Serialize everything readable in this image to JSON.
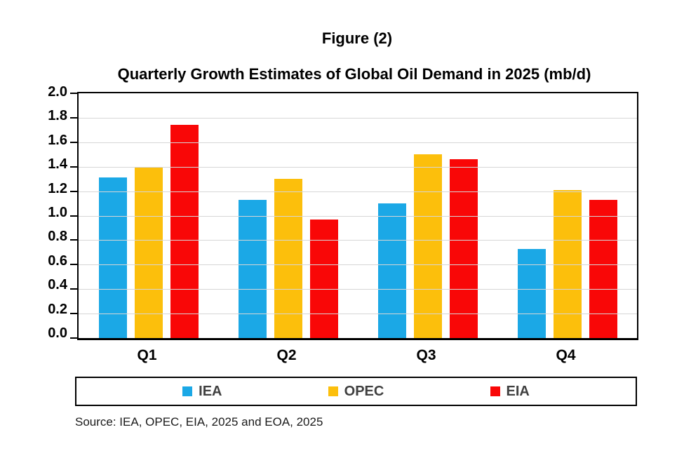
{
  "figure_label": "Figure (2)",
  "source_note": "Source: IEA, OPEC, EIA, 2025 and EOA, 2025",
  "chart_data": {
    "type": "bar",
    "title": "Quarterly Growth Estimates of Global Oil Demand in 2025 (mb/d)",
    "categories": [
      "Q1",
      "Q2",
      "Q3",
      "Q4"
    ],
    "series": [
      {
        "name": "IEA",
        "color": "#1BA8E6",
        "values": [
          1.31,
          1.13,
          1.1,
          0.73
        ]
      },
      {
        "name": "OPEC",
        "color": "#FCBF0C",
        "values": [
          1.4,
          1.3,
          1.5,
          1.21
        ]
      },
      {
        "name": "EIA",
        "color": "#F90707",
        "values": [
          1.74,
          0.97,
          1.46,
          1.13
        ]
      }
    ],
    "ylim": [
      0,
      2.0
    ],
    "ytick_step": 0.2,
    "ytick_labels": [
      "2.0",
      "1.8",
      "1.6",
      "1.4",
      "1.2",
      "1.0",
      "0.8",
      "0.6",
      "0.4",
      "0.2",
      "0.0"
    ],
    "xlabel": "",
    "ylabel": "",
    "grid": true,
    "gridline_color": "#D6D6D6",
    "legend_position": "bottom",
    "legend_text_color": "#404040"
  }
}
